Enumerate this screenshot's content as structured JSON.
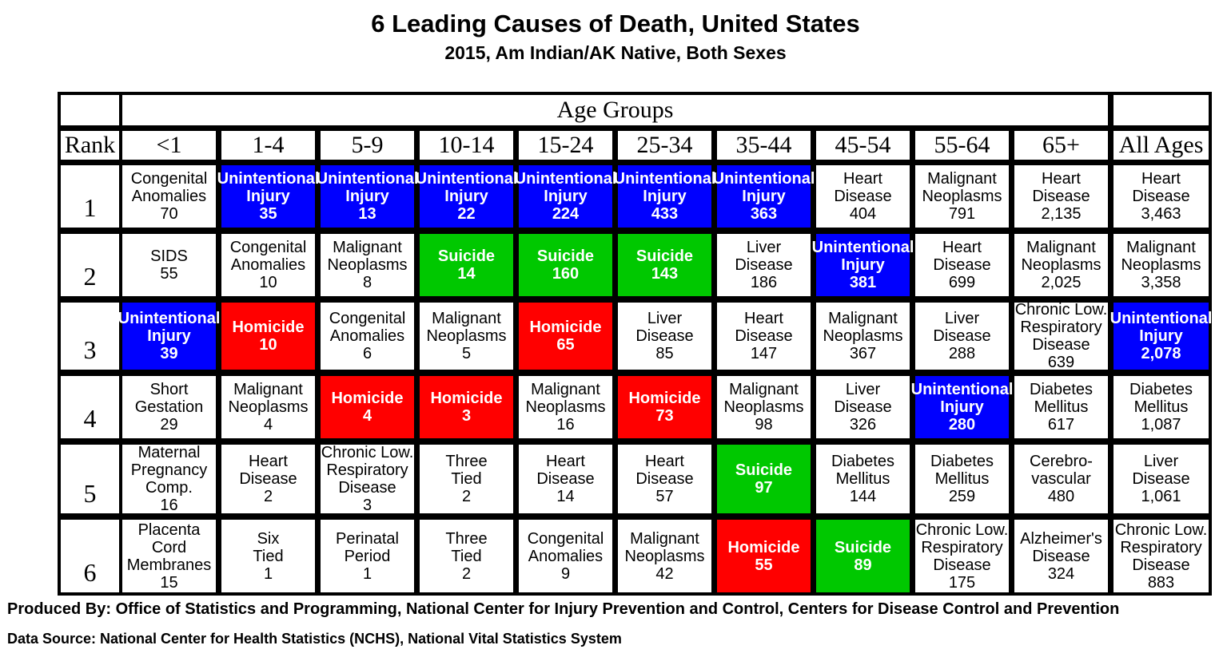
{
  "chart_data": {
    "type": "table",
    "title": "6 Leading Causes of Death, United States",
    "subtitle": "2015, Am Indian/AK Native, Both Sexes",
    "group_header": "Age Groups",
    "rank_header": "Rank",
    "columns": [
      "<1",
      "1-4",
      "5-9",
      "10-14",
      "15-24",
      "25-34",
      "35-44",
      "45-54",
      "55-64",
      "65+",
      "All Ages"
    ],
    "ranks": [
      "1",
      "2",
      "3",
      "4",
      "5",
      "6"
    ],
    "color_legend": {
      "blue": "#0000ff",
      "green": "#00c800",
      "red": "#ff0000"
    },
    "rows": [
      [
        {
          "lines": [
            "Congenital",
            "Anomalies",
            "70"
          ]
        },
        {
          "lines": [
            "Unintentional",
            "Injury",
            "35"
          ],
          "color": "blue"
        },
        {
          "lines": [
            "Unintentional",
            "Injury",
            "13"
          ],
          "color": "blue"
        },
        {
          "lines": [
            "Unintentional",
            "Injury",
            "22"
          ],
          "color": "blue"
        },
        {
          "lines": [
            "Unintentional",
            "Injury",
            "224"
          ],
          "color": "blue"
        },
        {
          "lines": [
            "Unintentional",
            "Injury",
            "433"
          ],
          "color": "blue"
        },
        {
          "lines": [
            "Unintentional",
            "Injury",
            "363"
          ],
          "color": "blue"
        },
        {
          "lines": [
            "Heart",
            "Disease",
            "404"
          ]
        },
        {
          "lines": [
            "Malignant",
            "Neoplasms",
            "791"
          ]
        },
        {
          "lines": [
            "Heart",
            "Disease",
            "2,135"
          ]
        },
        {
          "lines": [
            "Heart",
            "Disease",
            "3,463"
          ]
        }
      ],
      [
        {
          "lines": [
            "SIDS",
            "55"
          ]
        },
        {
          "lines": [
            "Congenital",
            "Anomalies",
            "10"
          ]
        },
        {
          "lines": [
            "Malignant",
            "Neoplasms",
            "8"
          ]
        },
        {
          "lines": [
            "Suicide",
            "14"
          ],
          "color": "green"
        },
        {
          "lines": [
            "Suicide",
            "160"
          ],
          "color": "green"
        },
        {
          "lines": [
            "Suicide",
            "143"
          ],
          "color": "green"
        },
        {
          "lines": [
            "Liver",
            "Disease",
            "186"
          ]
        },
        {
          "lines": [
            "Unintentional",
            "Injury",
            "381"
          ],
          "color": "blue"
        },
        {
          "lines": [
            "Heart",
            "Disease",
            "699"
          ]
        },
        {
          "lines": [
            "Malignant",
            "Neoplasms",
            "2,025"
          ]
        },
        {
          "lines": [
            "Malignant",
            "Neoplasms",
            "3,358"
          ]
        }
      ],
      [
        {
          "lines": [
            "Unintentional",
            "Injury",
            "39"
          ],
          "color": "blue"
        },
        {
          "lines": [
            "Homicide",
            "10"
          ],
          "color": "red"
        },
        {
          "lines": [
            "Congenital",
            "Anomalies",
            "6"
          ]
        },
        {
          "lines": [
            "Malignant",
            "Neoplasms",
            "5"
          ]
        },
        {
          "lines": [
            "Homicide",
            "65"
          ],
          "color": "red"
        },
        {
          "lines": [
            "Liver",
            "Disease",
            "85"
          ]
        },
        {
          "lines": [
            "Heart",
            "Disease",
            "147"
          ]
        },
        {
          "lines": [
            "Malignant",
            "Neoplasms",
            "367"
          ]
        },
        {
          "lines": [
            "Liver",
            "Disease",
            "288"
          ]
        },
        {
          "lines": [
            "Chronic Low.",
            "Respiratory",
            "Disease",
            "639"
          ]
        },
        {
          "lines": [
            "Unintentional",
            "Injury",
            "2,078"
          ],
          "color": "blue"
        }
      ],
      [
        {
          "lines": [
            "Short",
            "Gestation",
            "29"
          ]
        },
        {
          "lines": [
            "Malignant",
            "Neoplasms",
            "4"
          ]
        },
        {
          "lines": [
            "Homicide",
            "4"
          ],
          "color": "red"
        },
        {
          "lines": [
            "Homicide",
            "3"
          ],
          "color": "red"
        },
        {
          "lines": [
            "Malignant",
            "Neoplasms",
            "16"
          ]
        },
        {
          "lines": [
            "Homicide",
            "73"
          ],
          "color": "red"
        },
        {
          "lines": [
            "Malignant",
            "Neoplasms",
            "98"
          ]
        },
        {
          "lines": [
            "Liver",
            "Disease",
            "326"
          ]
        },
        {
          "lines": [
            "Unintentional",
            "Injury",
            "280"
          ],
          "color": "blue"
        },
        {
          "lines": [
            "Diabetes",
            "Mellitus",
            "617"
          ]
        },
        {
          "lines": [
            "Diabetes",
            "Mellitus",
            "1,087"
          ]
        }
      ],
      [
        {
          "lines": [
            "Maternal",
            "Pregnancy",
            "Comp.",
            "16"
          ]
        },
        {
          "lines": [
            "Heart",
            "Disease",
            "2"
          ]
        },
        {
          "lines": [
            "Chronic Low.",
            "Respiratory",
            "Disease",
            "3"
          ]
        },
        {
          "lines": [
            "Three",
            "Tied",
            "2"
          ]
        },
        {
          "lines": [
            "Heart",
            "Disease",
            "14"
          ]
        },
        {
          "lines": [
            "Heart",
            "Disease",
            "57"
          ]
        },
        {
          "lines": [
            "Suicide",
            "97"
          ],
          "color": "green"
        },
        {
          "lines": [
            "Diabetes",
            "Mellitus",
            "144"
          ]
        },
        {
          "lines": [
            "Diabetes",
            "Mellitus",
            "259"
          ]
        },
        {
          "lines": [
            "Cerebro-",
            "vascular",
            "480"
          ]
        },
        {
          "lines": [
            "Liver",
            "Disease",
            "1,061"
          ]
        }
      ],
      [
        {
          "lines": [
            "Placenta",
            "Cord",
            "Membranes",
            "15"
          ]
        },
        {
          "lines": [
            "Six",
            "Tied",
            "1"
          ]
        },
        {
          "lines": [
            "Perinatal",
            "Period",
            "1"
          ]
        },
        {
          "lines": [
            "Three",
            "Tied",
            "2"
          ]
        },
        {
          "lines": [
            "Congenital",
            "Anomalies",
            "9"
          ]
        },
        {
          "lines": [
            "Malignant",
            "Neoplasms",
            "42"
          ]
        },
        {
          "lines": [
            "Homicide",
            "55"
          ],
          "color": "red"
        },
        {
          "lines": [
            "Suicide",
            "89"
          ],
          "color": "green"
        },
        {
          "lines": [
            "Chronic Low.",
            "Respiratory",
            "Disease",
            "175"
          ]
        },
        {
          "lines": [
            "Alzheimer's",
            "Disease",
            "324"
          ]
        },
        {
          "lines": [
            "Chronic Low.",
            "Respiratory",
            "Disease",
            "883"
          ]
        }
      ]
    ]
  },
  "footer": {
    "produced_by": "Produced By: Office of Statistics and Programming, National Center for Injury Prevention and Control, Centers for Disease Control and Prevention",
    "data_source": "Data Source: National Center for Health Statistics (NCHS), National Vital Statistics System"
  }
}
